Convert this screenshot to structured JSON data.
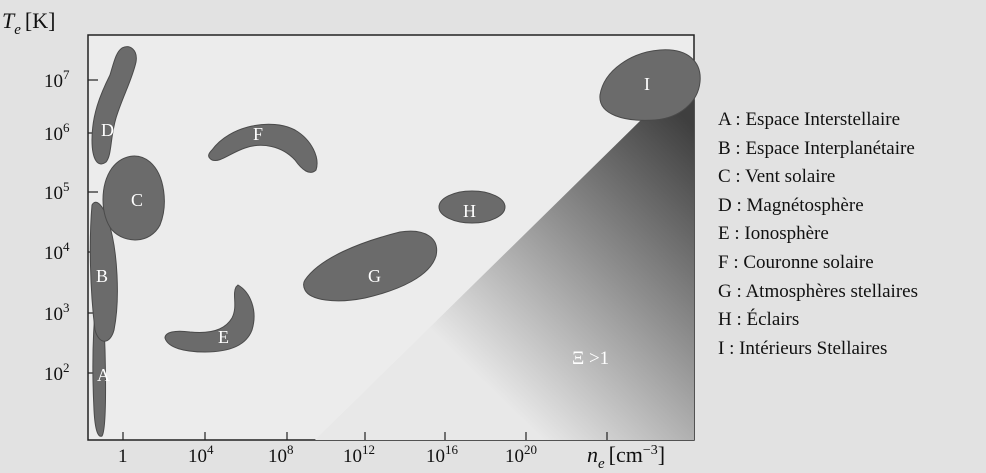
{
  "axes": {
    "y_label_main": "T",
    "y_label_sub": "e",
    "y_label_unit": "[K]",
    "x_label_main": "n",
    "x_label_sub": "e",
    "x_label_unit": "[cm",
    "x_label_unit_exp": "−3",
    "x_label_unit_close": "]",
    "x_ticks": [
      {
        "base": "1",
        "exp": ""
      },
      {
        "base": "10",
        "exp": "4"
      },
      {
        "base": "10",
        "exp": "8"
      },
      {
        "base": "10",
        "exp": "12"
      },
      {
        "base": "10",
        "exp": "16"
      },
      {
        "base": "10",
        "exp": "20"
      }
    ],
    "y_ticks": [
      {
        "base": "10",
        "exp": "2"
      },
      {
        "base": "10",
        "exp": "3"
      },
      {
        "base": "10",
        "exp": "4"
      },
      {
        "base": "10",
        "exp": "5"
      },
      {
        "base": "10",
        "exp": "6"
      },
      {
        "base": "10",
        "exp": "7"
      }
    ]
  },
  "regions": [
    {
      "id": "A",
      "label": "A"
    },
    {
      "id": "B",
      "label": "B"
    },
    {
      "id": "C",
      "label": "C"
    },
    {
      "id": "D",
      "label": "D"
    },
    {
      "id": "E",
      "label": "E"
    },
    {
      "id": "F",
      "label": "F"
    },
    {
      "id": "G",
      "label": "G"
    },
    {
      "id": "H",
      "label": "H"
    },
    {
      "id": "I",
      "label": "I"
    }
  ],
  "annotation": "Ξ >1",
  "legend": [
    "A : Espace Interstellaire",
    "B : Espace Interplanétaire",
    "C : Vent solaire",
    "D : Magnétosphère",
    "E : Ionosphère",
    "F : Couronne solaire",
    "G : Atmosphères stellaires",
    "H : Éclairs",
    "I : Intérieurs Stellaires"
  ],
  "colors": {
    "region_fill": "#6b6b6b",
    "region_stroke": "#4a4a4a",
    "plot_background": "#ececec",
    "gradient_dark": "#3a3a3a",
    "page_background": "#e2e2e2"
  }
}
